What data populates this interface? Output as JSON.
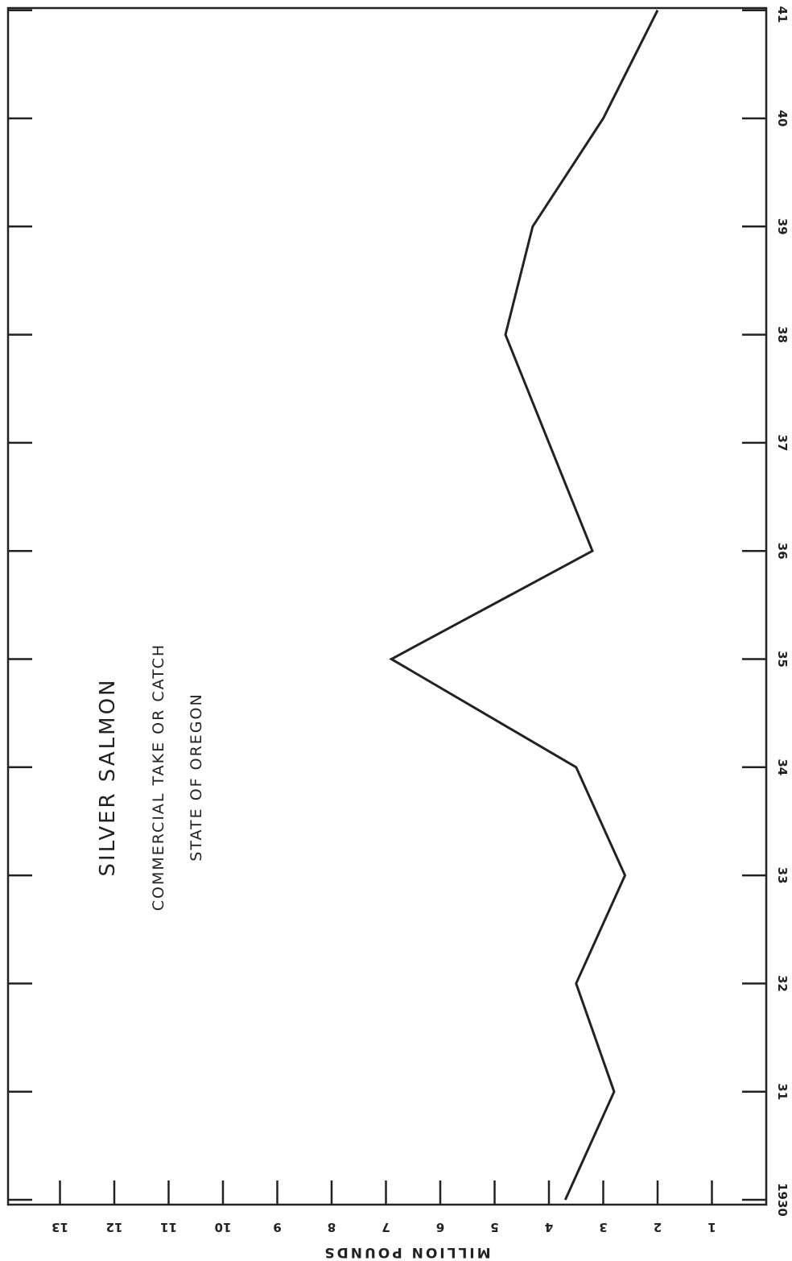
{
  "chart_data": {
    "type": "line",
    "title": "SILVER SALMON",
    "subtitle_lines": [
      "COMMERCIAL TAKE OR CATCH",
      "STATE OF OREGON"
    ],
    "ylabel": "MILLION POUNDS",
    "xlabel": "",
    "x_tick_labels": [
      "1930",
      "31",
      "32",
      "33",
      "34",
      "35",
      "36",
      "37",
      "38",
      "39",
      "40",
      "41"
    ],
    "y_tick_labels": [
      "1",
      "2",
      "3",
      "4",
      "5",
      "6",
      "7",
      "8",
      "9",
      "10",
      "11",
      "12",
      "13"
    ],
    "x": [
      1930,
      1931,
      1932,
      1933,
      1934,
      1935,
      1936,
      1937,
      1938,
      1939,
      1940,
      1941
    ],
    "values": [
      3.7,
      2.8,
      3.5,
      2.6,
      3.5,
      6.9,
      3.2,
      4.0,
      4.8,
      4.3,
      3.0,
      2.0
    ],
    "xlim": [
      1930,
      1941
    ],
    "ylim": [
      0,
      14
    ],
    "orientation": "rotated 90° clockwise (page landscape)",
    "grid": false,
    "line_color": "#222222"
  }
}
